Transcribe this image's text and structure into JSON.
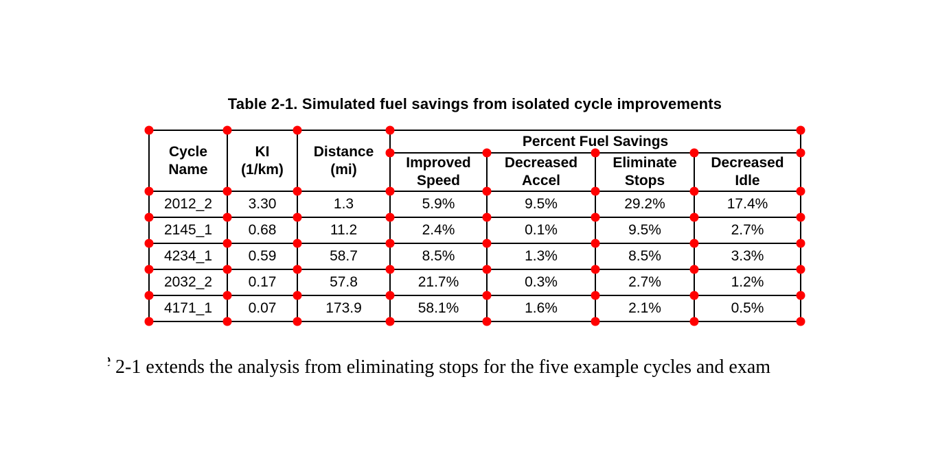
{
  "title": "Table 2-1. Simulated fuel savings from isolated cycle improvements",
  "table": {
    "header": {
      "cycle_name": "Cycle\nName",
      "ki": "KI\n(1/km)",
      "distance": "Distance\n(mi)",
      "group": "Percent Fuel Savings",
      "improved_speed": "Improved\nSpeed",
      "decreased_accel": "Decreased\nAccel",
      "eliminate_stops": "Eliminate\nStops",
      "decreased_idle": "Decreased\nIdle"
    },
    "rows": [
      [
        "2012_2",
        "3.30",
        "1.3",
        "5.9%",
        "9.5%",
        "29.2%",
        "17.4%"
      ],
      [
        "2145_1",
        "0.68",
        "11.2",
        "2.4%",
        "0.1%",
        "9.5%",
        "2.7%"
      ],
      [
        "4234_1",
        "0.59",
        "58.7",
        "8.5%",
        "1.3%",
        "8.5%",
        "3.3%"
      ],
      [
        "2032_2",
        "0.17",
        "57.8",
        "21.7%",
        "0.3%",
        "2.7%",
        "1.2%"
      ],
      [
        "4171_1",
        "0.07",
        "173.9",
        "58.1%",
        "1.6%",
        "2.1%",
        "0.5%"
      ]
    ]
  },
  "body_text": {
    "clipped_fragment": "e",
    "visible_text": "2-1 extends the analysis from eliminating stops for the five example cycles and exam"
  },
  "annotations": {
    "marker_shape": "circle",
    "marker_color": "#ff0000"
  },
  "colors": {
    "background": "#ffffff",
    "text": "#000000",
    "border": "#000000",
    "marker": "#ff0000"
  }
}
